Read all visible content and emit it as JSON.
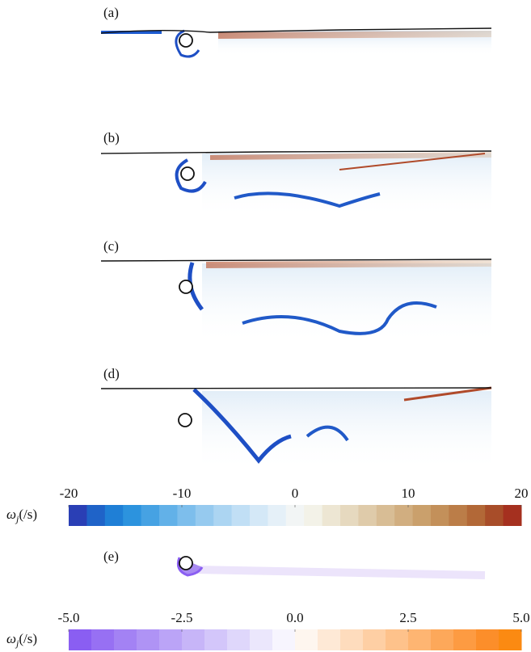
{
  "panels": [
    {
      "label": "(a)"
    },
    {
      "label": "(b)"
    },
    {
      "label": "(c)"
    },
    {
      "label": "(d)"
    },
    {
      "label": "(e)"
    }
  ],
  "colorbars": [
    {
      "label": {
        "symbol": "ω",
        "subscript": "j",
        "unit": "(/s)"
      },
      "lim": [
        -20,
        20
      ],
      "ticks": [
        -20,
        -10,
        0,
        10,
        20
      ],
      "colors": [
        "#2a3fb5",
        "#1f63c8",
        "#1f7fd6",
        "#2c93de",
        "#46a2e3",
        "#62b1e8",
        "#7dbeec",
        "#96caef",
        "#acd5f2",
        "#c1dff5",
        "#d4e8f7",
        "#e5f0f8",
        "#f2f5f5",
        "#f3f2e8",
        "#ede6d3",
        "#e6d9bf",
        "#dfcbaa",
        "#d8bd95",
        "#d1ae80",
        "#caa06c",
        "#c3905a",
        "#bb7d48",
        "#b26837",
        "#a84d29",
        "#a5301f"
      ]
    },
    {
      "label": {
        "symbol": "ω",
        "subscript": "j",
        "unit": "(/s)"
      },
      "lim": [
        -5,
        5
      ],
      "ticks": [
        {
          "value": -5,
          "label": "-5.0"
        },
        -2.5,
        {
          "value": 0,
          "label": "0.0"
        },
        2.5,
        {
          "value": 5,
          "label": "5.0"
        }
      ],
      "colors": [
        "#8a5ef2",
        "#9770f3",
        "#a382f4",
        "#af93f5",
        "#bba4f7",
        "#c7b5f8",
        "#d3c6fa",
        "#dfd7fb",
        "#ebe7fc",
        "#f7f5fe",
        "#fef6ef",
        "#fee9d6",
        "#fedcbd",
        "#fecfa4",
        "#fec28b",
        "#feb572",
        "#fda85a",
        "#fd9b42",
        "#fc8e2a",
        "#fb8a12"
      ]
    }
  ]
}
